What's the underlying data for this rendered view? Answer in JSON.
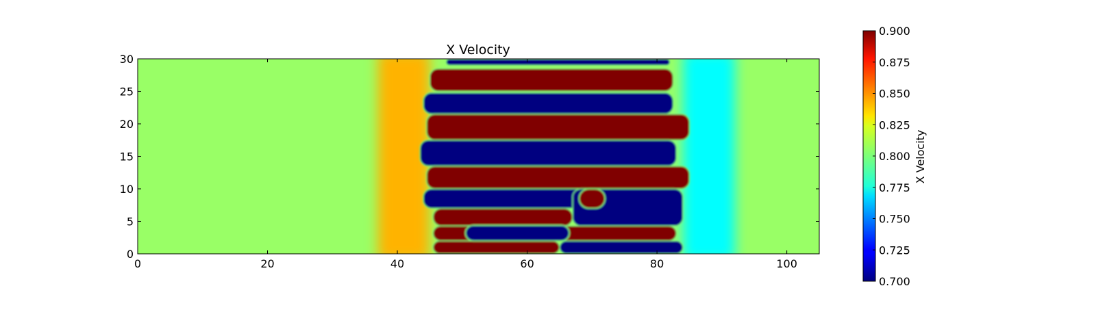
{
  "chart_data": {
    "type": "heatmap",
    "title": "X Velocity",
    "xlabel": "",
    "ylabel": "",
    "xlim": [
      0,
      105
    ],
    "ylim": [
      0,
      30
    ],
    "x_ticks": [
      "0",
      "20",
      "40",
      "60",
      "80",
      "100"
    ],
    "y_ticks": [
      "0",
      "5",
      "10",
      "15",
      "20",
      "25",
      "30"
    ],
    "grid": false,
    "colormap": "jet",
    "colorbar": {
      "label": "X Velocity",
      "range": [
        0.7,
        0.9
      ],
      "ticks": [
        "0.700",
        "0.725",
        "0.750",
        "0.775",
        "0.800",
        "0.825",
        "0.850",
        "0.875",
        "0.900"
      ]
    },
    "field": {
      "background_value": 0.805,
      "bands": [
        {
          "y_low": 29.0,
          "y_high": 30.0,
          "value": 0.7,
          "x_start": 47.5,
          "x_end": 82.0
        },
        {
          "y_low": 25.0,
          "y_high": 28.5,
          "value": 0.9,
          "x_start": 45.0,
          "x_end": 82.5
        },
        {
          "y_low": 21.5,
          "y_high": 24.8,
          "value": 0.7,
          "x_start": 44.0,
          "x_end": 82.5
        },
        {
          "y_low": 17.5,
          "y_high": 21.5,
          "value": 0.9,
          "x_start": 44.5,
          "x_end": 85.0
        },
        {
          "y_low": 13.5,
          "y_high": 17.5,
          "value": 0.7,
          "x_start": 43.5,
          "x_end": 83.0
        },
        {
          "y_low": 10.0,
          "y_high": 13.5,
          "value": 0.9,
          "x_start": 44.5,
          "x_end": 85.0
        },
        {
          "y_low": 7.0,
          "y_high": 10.0,
          "value": 0.7,
          "x_start": 44.0,
          "x_end": 84.0
        },
        {
          "y_low": 4.3,
          "y_high": 7.0,
          "value": 0.9,
          "x_start": 45.5,
          "x_end": 67.0
        },
        {
          "y_low": 4.3,
          "y_high": 10.0,
          "value": 0.7,
          "x_start": 67.0,
          "x_end": 84.0
        },
        {
          "y_low": 2.0,
          "y_high": 4.3,
          "value": 0.9,
          "x_start": 45.5,
          "x_end": 83.0
        },
        {
          "y_low": 0.0,
          "y_high": 2.0,
          "value": 0.9,
          "x_start": 45.5,
          "x_end": 65.0
        },
        {
          "y_low": 0.0,
          "y_high": 2.0,
          "value": 0.7,
          "x_start": 65.0,
          "x_end": 84.0
        }
      ],
      "blobs": [
        {
          "x": 50.5,
          "y": 3.2,
          "x_end": 66.5,
          "value": 0.7,
          "half_height": 1.2
        },
        {
          "x": 68.0,
          "y": 8.5,
          "x_end": 72.0,
          "value": 0.9,
          "half_height": 1.5
        }
      ]
    }
  }
}
